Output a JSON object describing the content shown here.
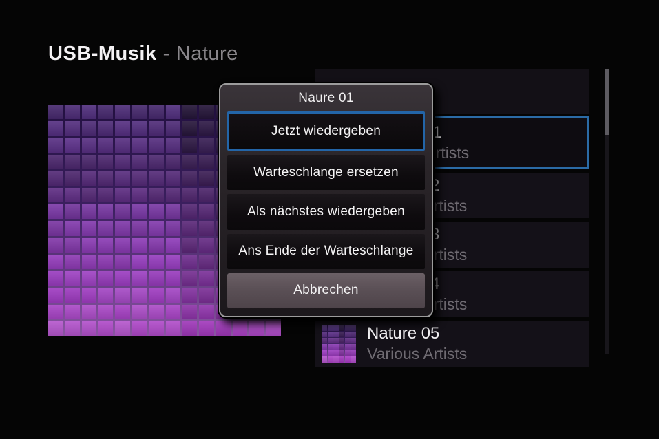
{
  "header": {
    "title": "USB-Musik",
    "separator": "-",
    "subtitle": "Nature"
  },
  "dialog": {
    "title": "Naure 01",
    "buttons": [
      {
        "label": "Jetzt wiedergeben",
        "state": "focused"
      },
      {
        "label": "Warteschlange ersetzen",
        "state": "normal"
      },
      {
        "label": "Als nächstes wiedergeben",
        "state": "normal"
      },
      {
        "label": "Ans Ende der Warteschlange",
        "state": "normal"
      },
      {
        "label": "Abbrechen",
        "state": "cancel"
      }
    ]
  },
  "track_list": {
    "items": [
      {
        "title": "Nature 01",
        "artist": "Various Artists",
        "selected": true
      },
      {
        "title": "Nature 02",
        "artist": "Various Artists",
        "selected": false
      },
      {
        "title": "Nature 03",
        "artist": "Various Artists",
        "selected": false
      },
      {
        "title": "Nature 04",
        "artist": "Various Artists",
        "selected": false
      },
      {
        "title": "Nature 05",
        "artist": "Various Artists",
        "selected": false
      }
    ]
  },
  "colors": {
    "background": "#050505",
    "accent_blue": "#2b6ba6",
    "row_background": "#141118",
    "cancel_button": "#5b5056",
    "art_top": "#4b2f7e",
    "art_bottom": "#a869c8"
  },
  "art": {
    "description": "purple pixel-mosaic album art"
  }
}
